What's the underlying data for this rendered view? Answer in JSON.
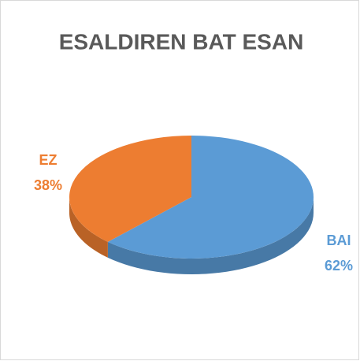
{
  "chart_data": {
    "type": "pie",
    "title": "ESALDIREN BAT ESAN",
    "categories": [
      "BAI",
      "EZ"
    ],
    "values": [
      62,
      38
    ],
    "value_labels": [
      "62%",
      "38%"
    ],
    "colors": [
      "#5b9bd5",
      "#ed7d31"
    ]
  }
}
